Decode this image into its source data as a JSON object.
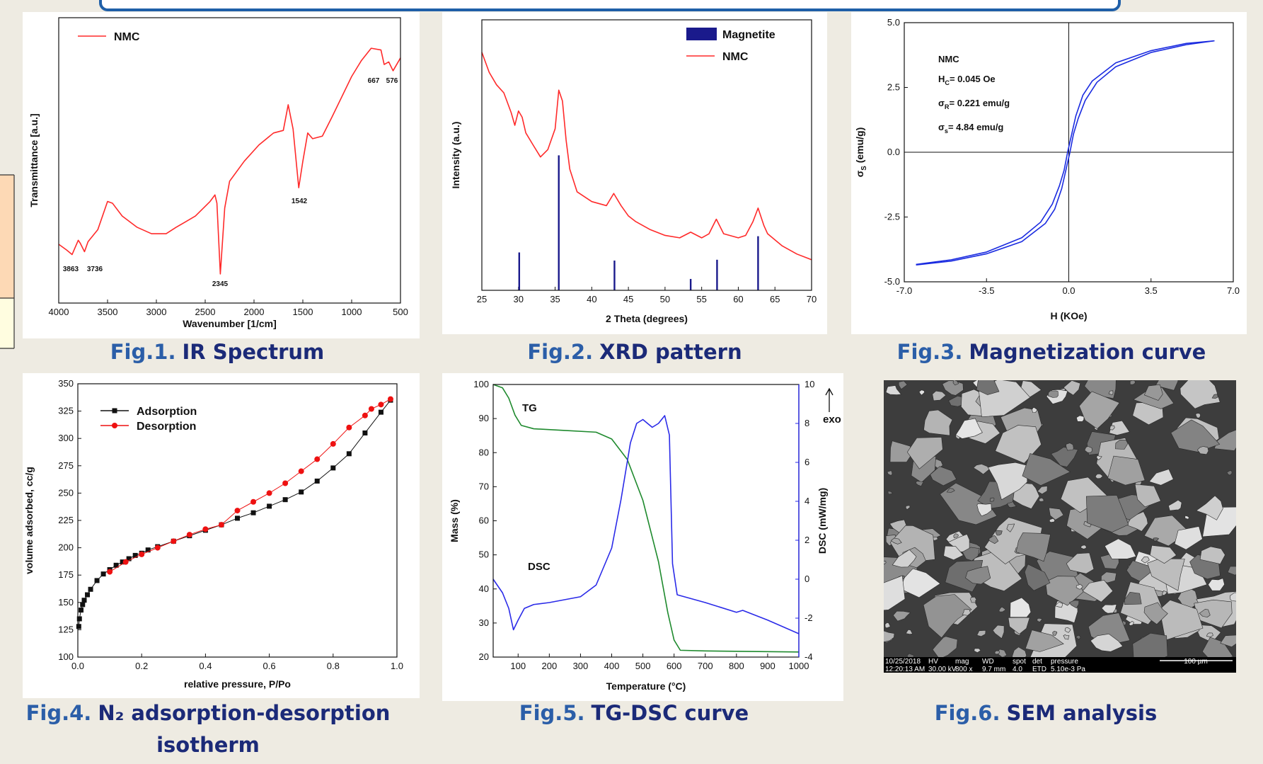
{
  "chart_data": [
    {
      "type": "line",
      "xlabel": "Wavenumber [1/cm]",
      "ylabel": "Transmittance [a.u.]",
      "xlim": [
        4000,
        500
      ],
      "xticks": [
        4000,
        3500,
        3000,
        2500,
        2000,
        1500,
        1000,
        500
      ],
      "ylim": [
        0,
        100
      ],
      "series": [
        {
          "name": "NMC",
          "color": "#ff2a2a",
          "x": [
            4000,
            3920,
            3863,
            3800,
            3780,
            3736,
            3700,
            3600,
            3500,
            3450,
            3350,
            3200,
            3050,
            2900,
            2800,
            2700,
            2600,
            2450,
            2400,
            2380,
            2345,
            2300,
            2250,
            2100,
            1950,
            1800,
            1700,
            1650,
            1600,
            1542,
            1500,
            1450,
            1400,
            1300,
            1200,
            1000,
            900,
            800,
            700,
            667,
            620,
            576,
            500
          ],
          "values": [
            20.6,
            18.6,
            17,
            22,
            21,
            18,
            21.5,
            25.7,
            35.6,
            35,
            30.5,
            26.6,
            24.3,
            24.3,
            26.5,
            28.5,
            30.5,
            35.6,
            37.9,
            35,
            10.2,
            33.3,
            42.7,
            49.7,
            55.4,
            59.6,
            60.5,
            69.5,
            61,
            40.4,
            49.7,
            59.6,
            57.6,
            58.5,
            65.3,
            79.4,
            85,
            89.3,
            88.7,
            83.6,
            84.5,
            81.4,
            85.9
          ]
        }
      ],
      "annotations": [
        "3863",
        "3736",
        "2345",
        "1542",
        "667",
        "576"
      ]
    },
    {
      "type": "line",
      "xlabel": "2 Theta (degrees)",
      "ylabel": "Intensity (a.u.)",
      "xlim": [
        25,
        70
      ],
      "xticks": [
        25,
        30,
        35,
        40,
        45,
        50,
        55,
        60,
        65,
        70
      ],
      "ylim": [
        0,
        100
      ],
      "series": [
        {
          "name": "Magnetite",
          "type": "bar",
          "color": "#1a1a8c",
          "x": [
            30.1,
            35.5,
            43.1,
            53.5,
            57.1,
            62.7
          ],
          "values": [
            14,
            49.9,
            11,
            4.2,
            11.3,
            20
          ]
        },
        {
          "name": "NMC",
          "color": "#ff2a2a",
          "x": [
            25,
            26,
            27,
            28,
            29,
            29.5,
            30,
            30.5,
            31,
            32,
            33,
            34,
            35,
            35.5,
            36,
            36.5,
            37,
            38,
            40,
            42,
            43,
            44,
            45,
            46,
            48,
            50,
            52,
            53.5,
            55,
            56,
            57,
            58,
            60,
            61,
            62,
            62.7,
            63.5,
            64,
            66,
            68,
            70
          ],
          "values": [
            88,
            80.6,
            76,
            73,
            65.7,
            61,
            66.3,
            64,
            58.2,
            53.7,
            49.3,
            52,
            59.7,
            74,
            70,
            55.5,
            44.8,
            36.4,
            32.8,
            31.3,
            35.8,
            31.3,
            27.5,
            25.4,
            22.4,
            20.3,
            19.4,
            21.5,
            19.4,
            20.9,
            26.3,
            20.9,
            19.4,
            20.3,
            25.4,
            30.4,
            23.9,
            20.9,
            16.4,
            13.4,
            11.3
          ]
        }
      ]
    },
    {
      "type": "line",
      "xlabel": "H (KOe)",
      "ylabel": {
        "main": "σ",
        "sub": "S",
        "rest": " (emu/g)"
      },
      "xlim": [
        -7,
        7
      ],
      "xticks": [
        {
          "value": -7,
          "label": "-7.0"
        },
        {
          "value": -3.5,
          "label": "-3.5"
        },
        {
          "value": 0,
          "label": "0.0"
        },
        {
          "value": 3.5,
          "label": "3.5"
        },
        {
          "value": 7,
          "label": "7.0"
        }
      ],
      "ylim": [
        -5,
        5
      ],
      "yticks": [
        {
          "value": -5,
          "label": "-5.0"
        },
        {
          "value": -2.5,
          "label": "-2.5"
        },
        {
          "value": 0,
          "label": "0.0"
        },
        {
          "value": 2.5,
          "label": "2.5"
        },
        {
          "value": 5,
          "label": "5.0"
        }
      ],
      "zero_lines": true,
      "series": [
        {
          "color": "#1a2be0",
          "x": [
            -6.5,
            -5,
            -3.5,
            -2,
            -1.2,
            -0.7,
            -0.4,
            -0.2,
            -0.05,
            0.1,
            0.3,
            0.6,
            1,
            2,
            3.5,
            5,
            6.2
          ],
          "values": [
            -4.33,
            -4.15,
            -3.85,
            -3.3,
            -2.7,
            -2.0,
            -1.3,
            -0.7,
            0,
            0.6,
            1.4,
            2.2,
            2.75,
            3.45,
            3.92,
            4.2,
            4.3
          ]
        },
        {
          "color": "#1a2be0",
          "x": [
            -6.5,
            -5,
            -3.5,
            -2,
            -1,
            -0.6,
            -0.3,
            -0.1,
            0.05,
            0.2,
            0.4,
            0.7,
            1.2,
            2,
            3.5,
            5,
            6.2
          ],
          "values": [
            -4.35,
            -4.2,
            -3.92,
            -3.45,
            -2.75,
            -2.2,
            -1.4,
            -0.6,
            0,
            0.7,
            1.3,
            2.0,
            2.7,
            3.3,
            3.85,
            4.15,
            4.3
          ]
        }
      ],
      "annotations": [
        "NMC",
        {
          "main": "H",
          "sub": "C",
          "rest": "= 0.045 Oe"
        },
        {
          "main": "σ",
          "sub": "R",
          "rest": "= 0.221 emu/g"
        },
        {
          "main": "σ",
          "sub": "s",
          "rest": "= 4.84 emu/g"
        }
      ]
    },
    {
      "type": "line",
      "xlabel": "relative pressure, P/Po",
      "ylabel": "volume adsorbed, cc/g",
      "xlim": [
        0,
        1
      ],
      "xticks": [
        {
          "value": 0,
          "label": "0.0"
        },
        {
          "value": 0.2,
          "label": "0.2"
        },
        {
          "value": 0.4,
          "label": "0.4"
        },
        {
          "value": 0.6,
          "label": "0.6"
        },
        {
          "value": 0.8,
          "label": "0.8"
        },
        {
          "value": 1,
          "label": "1.0"
        }
      ],
      "ylim": [
        100,
        350
      ],
      "yticks": [
        100,
        125,
        150,
        175,
        200,
        225,
        250,
        275,
        300,
        325,
        350
      ],
      "series": [
        {
          "name": "Adsorption",
          "color": "#111111",
          "marker": "square",
          "x": [
            0.003,
            0.005,
            0.01,
            0.015,
            0.02,
            0.03,
            0.04,
            0.06,
            0.08,
            0.1,
            0.12,
            0.14,
            0.16,
            0.18,
            0.2,
            0.22,
            0.25,
            0.3,
            0.35,
            0.4,
            0.45,
            0.5,
            0.55,
            0.6,
            0.65,
            0.7,
            0.75,
            0.8,
            0.85,
            0.9,
            0.95,
            0.98
          ],
          "values": [
            128,
            135,
            143,
            148,
            152,
            157,
            162,
            170,
            176,
            180,
            184,
            187,
            190,
            193,
            195,
            198,
            201,
            206,
            211,
            216,
            221,
            227,
            232,
            238,
            244,
            251,
            261,
            273,
            286,
            305,
            324,
            335
          ]
        },
        {
          "name": "Desorption",
          "color": "#ee1111",
          "marker": "circle",
          "x": [
            0.1,
            0.15,
            0.2,
            0.25,
            0.3,
            0.35,
            0.4,
            0.45,
            0.5,
            0.55,
            0.6,
            0.65,
            0.7,
            0.75,
            0.8,
            0.85,
            0.9,
            0.92,
            0.95,
            0.98
          ],
          "values": [
            178,
            187,
            194,
            200,
            206,
            212,
            217,
            221,
            234,
            242,
            250,
            259,
            270,
            281,
            295,
            310,
            321,
            327,
            331,
            336
          ]
        }
      ]
    },
    {
      "type": "line",
      "xlabel": "Temperature (°C)",
      "ylabel": "Mass (%)",
      "y2label": "DSC (mW/mg)",
      "xlim": [
        20,
        1000
      ],
      "xticks": [
        100,
        200,
        300,
        400,
        500,
        600,
        700,
        800,
        900,
        1000
      ],
      "ylim": [
        20,
        100
      ],
      "yticks": [
        20,
        30,
        40,
        50,
        60,
        70,
        80,
        90,
        100
      ],
      "y2lim": [
        -4,
        10
      ],
      "y2ticks": [
        -4,
        -2,
        0,
        2,
        4,
        6,
        8,
        10
      ],
      "y2color": "#2a2ae8",
      "series": [
        {
          "color": "#1f8a2e",
          "x": [
            20,
            50,
            70,
            90,
            110,
            150,
            250,
            350,
            400,
            450,
            500,
            550,
            580,
            600,
            620,
            700,
            1000
          ],
          "values": [
            100,
            99,
            96,
            91,
            88,
            87,
            86.5,
            86,
            84,
            78,
            66,
            48,
            33,
            25,
            22,
            21.8,
            21.5
          ]
        },
        {
          "color": "#2a2ae8",
          "axis": "y2",
          "x": [
            20,
            50,
            70,
            85,
            100,
            120,
            150,
            200,
            300,
            350,
            400,
            430,
            460,
            480,
            500,
            530,
            550,
            570,
            585,
            595,
            610,
            700,
            800,
            820,
            900,
            1000
          ],
          "values": [
            0,
            -0.7,
            -1.5,
            -2.6,
            -2.1,
            -1.5,
            -1.3,
            -1.2,
            -0.9,
            -0.3,
            1.6,
            4.1,
            7.0,
            8.0,
            8.2,
            7.8,
            8.0,
            8.4,
            7.4,
            0.8,
            -0.8,
            -1.2,
            -1.7,
            -1.6,
            -2.1,
            -2.8
          ]
        }
      ],
      "annotations": [
        "TG",
        "DSC",
        "exo"
      ]
    }
  ],
  "captions": [
    {
      "label": "Fig.1.",
      "lines": [
        "IR Spectrum"
      ]
    },
    {
      "label": "Fig.2.",
      "lines": [
        "XRD pattern"
      ]
    },
    {
      "label": "Fig.3.",
      "lines": [
        "Magnetization curve"
      ]
    },
    {
      "label": "Fig.4.",
      "lines": [
        "N₂ adsorption-desorption",
        "isotherm"
      ]
    },
    {
      "label": "Fig.5.",
      "lines": [
        "TG-DSC curve"
      ]
    },
    {
      "label": "Fig.6.",
      "lines": [
        "SEM analysis"
      ]
    }
  ],
  "sem": {
    "info": [
      [
        "10/25/2018",
        "12:20:13 AM"
      ],
      [
        "HV",
        "30.00 kV"
      ],
      [
        "mag",
        "800 x"
      ],
      [
        "WD",
        "9.7 mm"
      ],
      [
        "spot",
        "4.0"
      ],
      [
        "det",
        "ETD"
      ],
      [
        "pressure",
        "5.10e-3 Pa"
      ]
    ],
    "scale": "100 µm"
  }
}
